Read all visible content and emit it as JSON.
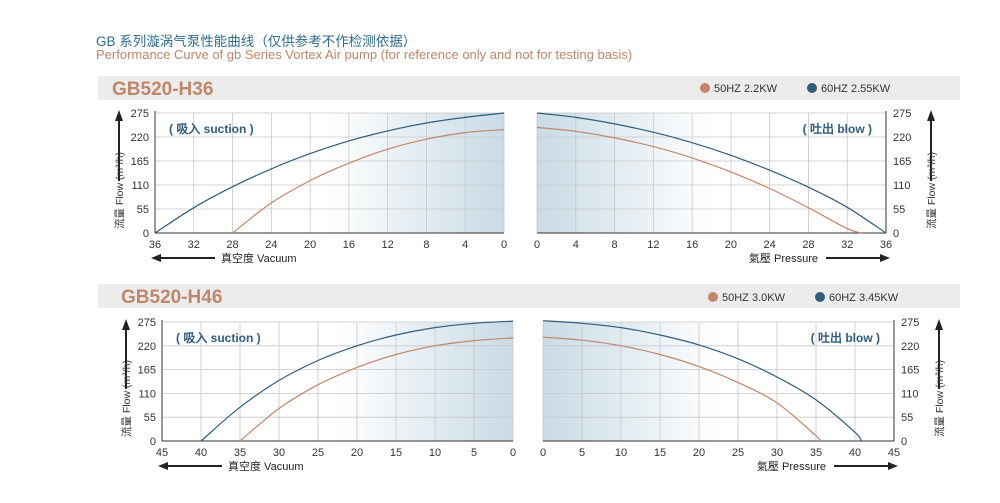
{
  "header": {
    "title_cn": "GB 系列漩涡气泵性能曲线（仅供参考不作检测依据）",
    "title_en": "Performance Curve of gb Series Vortex Air pump (for reference only and not for testing basis)"
  },
  "colors": {
    "hz50": "#c0876a",
    "hz60": "#2e5d7e",
    "grid": "#c8c8c8",
    "band": "#ececec",
    "model_title": "#c0876a",
    "tag": "#2e5d7e"
  },
  "common": {
    "y_axis_label": "流量 Flow (m³/h)",
    "suction_tag": "( 吸入 suction )",
    "blow_tag": "( 吐出 blow )",
    "vacuum_label": "真空度  Vacuum",
    "pressure_label": "氣壓  Pressure"
  },
  "chart_data": [
    {
      "type": "line",
      "model": "GB520-H36",
      "legend": [
        "50HZ  2.2KW",
        "60HZ  2.55KW"
      ],
      "yticks": [
        0,
        55,
        110,
        165,
        220,
        275
      ],
      "ylim": [
        0,
        275
      ],
      "vacuum": {
        "xticks": [
          36,
          32,
          28,
          24,
          20,
          16,
          12,
          8,
          4,
          0
        ],
        "xlim": [
          36,
          0
        ],
        "series": [
          {
            "name": "50HZ  2.2KW",
            "x": [
              28,
              24,
              20,
              16,
              12,
              8,
              4,
              0
            ],
            "y": [
              0,
              69,
              120,
              160,
              192,
              215,
              230,
              237
            ]
          },
          {
            "name": "60HZ  2.55KW",
            "x": [
              36,
              32,
              28,
              24,
              20,
              16,
              12,
              8,
              4,
              0
            ],
            "y": [
              0,
              58,
              106,
              147,
              182,
              211,
              234,
              252,
              265,
              275
            ]
          }
        ]
      },
      "pressure": {
        "xticks": [
          0,
          4,
          8,
          12,
          16,
          20,
          24,
          28,
          32,
          36
        ],
        "xlim": [
          0,
          36
        ],
        "series": [
          {
            "name": "50HZ  2.2KW",
            "x": [
              0,
              4,
              8,
              12,
              16,
              20,
              24,
              28,
              32,
              33.5
            ],
            "y": [
              242,
              233,
              218,
              198,
              172,
              140,
              102,
              58,
              10,
              0
            ]
          },
          {
            "name": "60HZ  2.55KW",
            "x": [
              0,
              4,
              8,
              12,
              16,
              20,
              24,
              28,
              32,
              36
            ],
            "y": [
              275,
              265,
              250,
              231,
              207,
              178,
              144,
              105,
              59,
              0
            ]
          }
        ]
      }
    },
    {
      "type": "line",
      "model": "GB520-H46",
      "legend": [
        "50HZ  3.0KW",
        "60HZ  3.45KW"
      ],
      "yticks": [
        0,
        55,
        110,
        165,
        220,
        275
      ],
      "ylim": [
        0,
        275
      ],
      "vacuum": {
        "xticks": [
          45,
          40,
          35,
          30,
          25,
          20,
          15,
          10,
          5,
          0
        ],
        "xlim": [
          45,
          0
        ],
        "series": [
          {
            "name": "50HZ  3.0KW",
            "x": [
              35,
              30,
              25,
              20,
              15,
              10,
              5,
              0
            ],
            "y": [
              0,
              75,
              130,
              170,
              200,
              220,
              232,
              238
            ]
          },
          {
            "name": "60HZ  3.45KW",
            "x": [
              40,
              35,
              30,
              25,
              20,
              15,
              10,
              5,
              0
            ],
            "y": [
              0,
              78,
              140,
              186,
              220,
              245,
              262,
              272,
              277
            ]
          }
        ]
      },
      "pressure": {
        "xticks": [
          0,
          5,
          10,
          15,
          20,
          25,
          30,
          35,
          40,
          45
        ],
        "xlim": [
          0,
          45
        ],
        "series": [
          {
            "name": "50HZ  3.0KW",
            "x": [
              0,
              5,
              10,
              15,
              20,
              25,
              30,
              35,
              35.5
            ],
            "y": [
              240,
              233,
              220,
              200,
              172,
              135,
              88,
              12,
              0
            ]
          },
          {
            "name": "60HZ  3.45KW",
            "x": [
              0,
              5,
              10,
              15,
              20,
              25,
              30,
              35,
              40,
              40.8
            ],
            "y": [
              278,
              272,
              262,
              245,
              222,
              190,
              148,
              95,
              20,
              0
            ]
          }
        ]
      }
    }
  ]
}
